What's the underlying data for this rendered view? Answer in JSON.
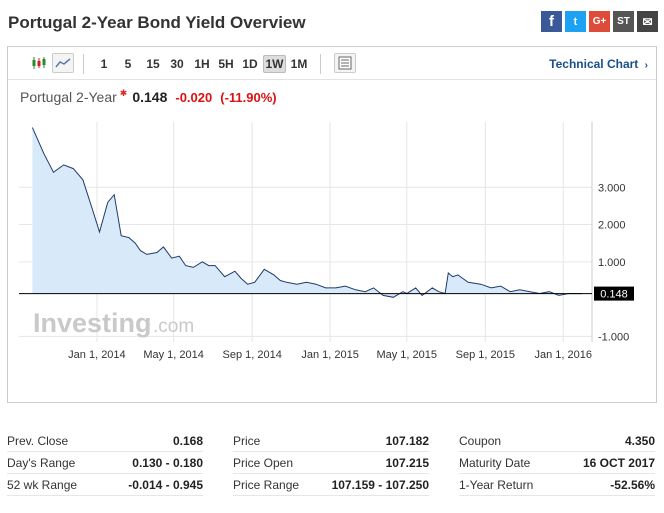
{
  "page": {
    "title": "Portugal 2-Year Bond Yield Overview"
  },
  "social": [
    "f",
    "t",
    "G+",
    "ST",
    "✉"
  ],
  "toolbar": {
    "intervals": [
      "1",
      "5",
      "15",
      "30",
      "1H",
      "5H",
      "1D",
      "1W",
      "1M"
    ],
    "active_interval": "1W",
    "technical_chart_label": "Technical Chart"
  },
  "quote": {
    "name": "Portugal 2-Year",
    "last": "0.148",
    "change": "-0.020",
    "change_pct": "(-11.90%)"
  },
  "watermark": {
    "brand": "Investing",
    "suffix": ".com"
  },
  "colors": {
    "line": "#1f3a6b",
    "fill": "#d8e9f9",
    "negative": "#dd1111",
    "link": "#1a4f8b"
  },
  "chart_data": {
    "type": "area",
    "x_ticks": [
      "Jan 1, 2014",
      "May 1, 2014",
      "Sep 1, 2014",
      "Jan 1, 2015",
      "May 1, 2015",
      "Sep 1, 2015",
      "Jan 1, 2016"
    ],
    "y_ticks": [
      "3.000",
      "2.000",
      "1.000",
      "-1.000"
    ],
    "y_tick_values": [
      3,
      2,
      1,
      -1
    ],
    "last_price_label": "0.148",
    "last_price": 0.148,
    "ylim": [
      -1.15,
      4.75
    ],
    "xlim": [
      "2013-09-01",
      "2016-02-15"
    ],
    "grid": true,
    "series": [
      {
        "x": [
          "2013-09-22",
          "2013-10-10",
          "2013-10-25",
          "2013-11-10",
          "2013-11-25",
          "2013-12-10",
          "2013-12-25",
          "2014-01-05",
          "2014-01-18",
          "2014-01-28",
          "2014-02-08",
          "2014-02-20",
          "2014-03-02",
          "2014-03-10",
          "2014-03-20",
          "2014-04-05",
          "2014-04-15",
          "2014-04-28",
          "2014-05-10",
          "2014-05-20",
          "2014-06-01",
          "2014-06-15",
          "2014-06-25",
          "2014-07-05",
          "2014-07-20",
          "2014-08-05",
          "2014-08-15",
          "2014-08-25",
          "2014-09-05",
          "2014-09-20",
          "2014-10-05",
          "2014-10-15",
          "2014-10-25",
          "2014-11-10",
          "2014-11-25",
          "2014-12-10",
          "2014-12-25",
          "2015-01-10",
          "2015-01-25",
          "2015-02-10",
          "2015-02-25",
          "2015-03-10",
          "2015-03-25",
          "2015-04-10",
          "2015-04-25",
          "2015-05-01",
          "2015-05-15",
          "2015-05-25",
          "2015-06-10",
          "2015-06-20",
          "2015-06-30",
          "2015-07-05",
          "2015-07-12",
          "2015-07-20",
          "2015-08-05",
          "2015-08-25",
          "2015-09-10",
          "2015-09-25",
          "2015-10-10",
          "2015-10-25",
          "2015-11-10",
          "2015-11-25",
          "2015-12-10",
          "2015-12-25",
          "2016-01-10",
          "2016-01-30"
        ],
        "y": [
          4.6,
          3.9,
          3.4,
          3.6,
          3.5,
          3.2,
          2.4,
          1.8,
          2.6,
          2.8,
          1.7,
          1.65,
          1.5,
          1.3,
          1.2,
          1.25,
          1.4,
          1.1,
          1.15,
          0.9,
          0.85,
          1.0,
          0.9,
          0.9,
          0.6,
          0.75,
          0.55,
          0.4,
          0.45,
          0.8,
          0.65,
          0.5,
          0.45,
          0.4,
          0.45,
          0.4,
          0.3,
          0.3,
          0.35,
          0.25,
          0.2,
          0.3,
          0.1,
          0.05,
          0.2,
          0.15,
          0.3,
          0.1,
          0.3,
          0.2,
          0.15,
          0.7,
          0.6,
          0.65,
          0.45,
          0.4,
          0.3,
          0.35,
          0.2,
          0.25,
          0.2,
          0.15,
          0.2,
          0.1,
          0.15,
          0.148
        ]
      }
    ]
  },
  "stats": {
    "col1": [
      {
        "label": "Prev. Close",
        "value": "0.168"
      },
      {
        "label": "Day's Range",
        "value": "0.130 - 0.180"
      },
      {
        "label": "52 wk Range",
        "value": "-0.014 - 0.945"
      }
    ],
    "col2": [
      {
        "label": "Price",
        "value": "107.182"
      },
      {
        "label": "Price Open",
        "value": "107.215"
      },
      {
        "label": "Price Range",
        "value": "107.159 - 107.250"
      }
    ],
    "col3": [
      {
        "label": "Coupon",
        "value": "4.350"
      },
      {
        "label": "Maturity Date",
        "value": "16 OCT 2017"
      },
      {
        "label": "1-Year Return",
        "value": "-52.56%"
      }
    ]
  }
}
